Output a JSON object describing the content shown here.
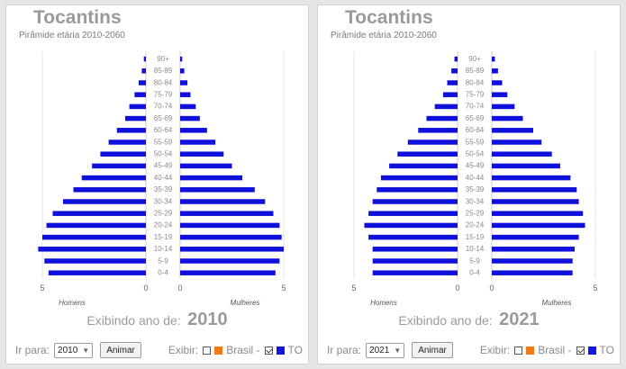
{
  "colors": {
    "male": "#1010dd",
    "female": "#1010dd",
    "brasil": "#f47a16",
    "to": "#1515e0",
    "title": "#9a9a9a"
  },
  "panels": [
    {
      "title": "Tocantins",
      "subtitle": "Pirâmide etária 2010-2060",
      "exibindo_label": "Exibindo ano de:",
      "year": "2010",
      "ir_para_label": "Ir para:",
      "select_value": "2010",
      "animar_label": "Animar",
      "exibir_label": "Exibir:",
      "brasil_label": "Brasil -",
      "to_label": "TO",
      "chart_data": {
        "type": "bar",
        "orientation": "horizontal-pyramid",
        "categories": [
          "0-4",
          "5-9",
          "10-14",
          "15-19",
          "20-24",
          "25-29",
          "30-34",
          "35-39",
          "40-44",
          "45-49",
          "50-54",
          "55-59",
          "60-64",
          "65-69",
          "70-74",
          "75-79",
          "80-84",
          "85-89",
          "90+"
        ],
        "series": [
          {
            "name": "Homens",
            "values": [
              4.7,
              4.9,
              5.2,
              5.0,
              4.8,
              4.5,
              4.0,
              3.5,
              3.1,
              2.6,
              2.2,
              1.8,
              1.4,
              1.0,
              0.8,
              0.55,
              0.35,
              0.2,
              0.1
            ]
          },
          {
            "name": "Mulheres",
            "values": [
              4.6,
              4.8,
              5.0,
              4.9,
              4.8,
              4.5,
              4.1,
              3.6,
              3.0,
              2.5,
              2.1,
              1.7,
              1.3,
              0.95,
              0.75,
              0.5,
              0.35,
              0.2,
              0.1
            ]
          }
        ],
        "xlabel_left": "Homens",
        "xlabel_right": "Mulheres",
        "x_ticks": [
          "5",
          "0",
          "0",
          "5"
        ],
        "xlim": [
          0,
          5
        ],
        "grid": true
      }
    },
    {
      "title": "Tocantins",
      "subtitle": "Pirâmide etária 2010-2060",
      "exibindo_label": "Exibindo ano de:",
      "year": "2021",
      "ir_para_label": "Ir para:",
      "select_value": "2021",
      "animar_label": "Animar",
      "exibir_label": "Exibir:",
      "brasil_label": "Brasil -",
      "to_label": "TO",
      "chart_data": {
        "type": "bar",
        "orientation": "horizontal-pyramid",
        "categories": [
          "0-4",
          "5-9",
          "10-14",
          "15-19",
          "20-24",
          "25-29",
          "30-34",
          "35-39",
          "40-44",
          "45-49",
          "50-54",
          "55-59",
          "60-64",
          "65-69",
          "70-74",
          "75-79",
          "80-84",
          "85-89",
          "90+"
        ],
        "series": [
          {
            "name": "Homens",
            "values": [
              4.1,
              4.1,
              4.1,
              4.3,
              4.5,
              4.3,
              4.1,
              3.9,
              3.7,
              3.3,
              2.9,
              2.4,
              1.9,
              1.5,
              1.1,
              0.7,
              0.5,
              0.3,
              0.15
            ]
          },
          {
            "name": "Mulheres",
            "values": [
              3.9,
              3.9,
              4.0,
              4.2,
              4.5,
              4.4,
              4.2,
              4.1,
              3.8,
              3.3,
              2.9,
              2.4,
              2.0,
              1.5,
              1.1,
              0.75,
              0.5,
              0.3,
              0.15
            ]
          }
        ],
        "xlabel_left": "Homens",
        "xlabel_right": "Mulheres",
        "x_ticks": [
          "5",
          "0",
          "0",
          "5"
        ],
        "xlim": [
          0,
          5
        ],
        "grid": true
      }
    }
  ]
}
